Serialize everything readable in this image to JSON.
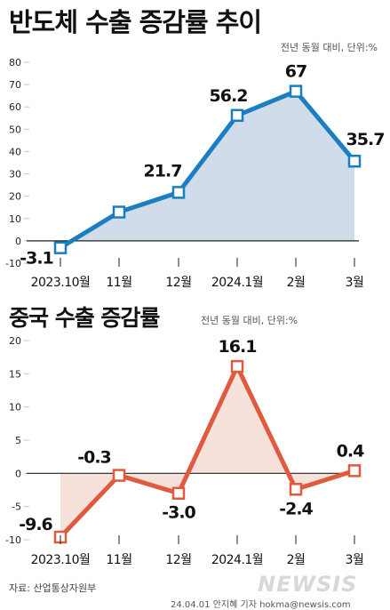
{
  "charts": [
    {
      "title": "반도체 수출 증감률 추이",
      "unit_note": "전년 동월 대비, 단위:%"
    },
    {
      "title": "중국 수출 증감률",
      "unit_note": "전년 동월 대비, 단위:%"
    }
  ],
  "chart_data": [
    {
      "type": "line",
      "title": "반도체 수출 증감률 추이",
      "categories": [
        "2023.10월",
        "11월",
        "12월",
        "2024.1월",
        "2월",
        "3월"
      ],
      "values": [
        -3.1,
        12.9,
        21.7,
        56.2,
        67,
        35.7
      ],
      "value_labels": [
        "-3.1",
        "",
        "21.7",
        "56.2",
        "67",
        "35.7"
      ],
      "yticks": [
        "80",
        "70",
        "60",
        "50",
        "40",
        "30",
        "20",
        "10",
        "0",
        "-10"
      ],
      "ylim": [
        -10,
        80
      ],
      "grid": false,
      "colors": {
        "line": "#1a7ec0",
        "fill": "#c9d6e6",
        "tick": "#b4c8dc"
      }
    },
    {
      "type": "line",
      "title": "중국 수출 증감률",
      "categories": [
        "2023.10월",
        "11월",
        "12월",
        "2024.1월",
        "2월",
        "3월"
      ],
      "values": [
        -9.6,
        -0.3,
        -3.0,
        16.1,
        -2.4,
        0.4
      ],
      "value_labels": [
        "-9.6",
        "-0.3",
        "-3.0",
        "16.1",
        "-2.4",
        "0.4"
      ],
      "yticks": [
        "20",
        "15",
        "10",
        "5",
        "0",
        "-5",
        "-10"
      ],
      "ylim": [
        -10,
        20
      ],
      "grid": false,
      "colors": {
        "line": "#e05a40",
        "fill": "#f5ddd3",
        "tick": "#e8b8a8"
      }
    }
  ],
  "footer": {
    "source": "자료: 산업통상자원부",
    "credit": "24.04.01 안지혜 기자 hokma@newsis.com",
    "logo": "NEWSIS"
  }
}
